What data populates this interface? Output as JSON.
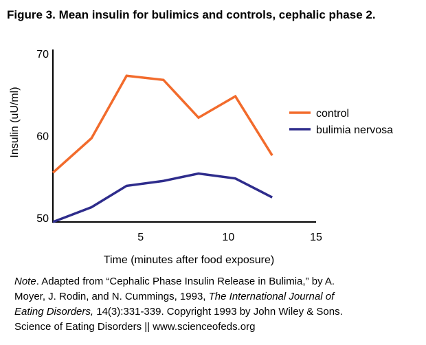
{
  "title": "Figure 3. Mean insulin for bulimics and controls, cephalic phase 2.",
  "chart_data": {
    "type": "line",
    "xlabel": "Time (minutes after food exposure)",
    "ylabel": "Insulin (uU/ml)",
    "xlim": [
      0,
      15
    ],
    "ylim": [
      49.5,
      70
    ],
    "xticks": [
      5,
      10,
      15
    ],
    "yticks": [
      50,
      60,
      70
    ],
    "grid": false,
    "legend_position": "right",
    "series": [
      {
        "name": "control",
        "color": "#f26b2c",
        "x": [
          0,
          2.2,
          4.2,
          6.3,
          8.3,
          10.4,
          12.5
        ],
        "y": [
          55.5,
          59.7,
          67.3,
          66.8,
          62.2,
          64.8,
          57.6
        ]
      },
      {
        "name": "bulimia nervosa",
        "color": "#2e2c8c",
        "x": [
          0,
          2.2,
          4.2,
          6.3,
          8.3,
          10.4,
          12.5
        ],
        "y": [
          49.5,
          51.3,
          53.9,
          54.5,
          55.4,
          54.8,
          52.5
        ]
      }
    ]
  },
  "note": {
    "line1_label": "Note",
    "line1_text": ". Adapted from “Cephalic Phase Insulin Release in Bulimia,” by A.",
    "line2_text": "Moyer, J. Rodin, and N. Cummings, 1993, ",
    "line2_journal": "The International Journal of",
    "line3_journal": "Eating Disorders,",
    "line3_text": " 14(3):331-339. Copyright 1993 by John Wiley & Sons.",
    "line4_text": "Science of Eating Disorders || www.scienceofeds.org"
  }
}
